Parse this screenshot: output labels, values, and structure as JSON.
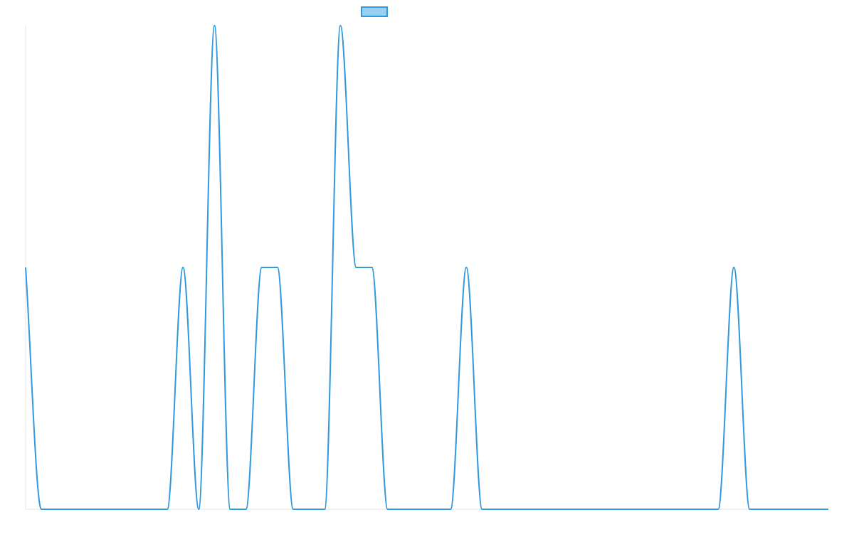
{
  "chart_data": {
    "type": "line",
    "title": "",
    "xlabel": "",
    "ylabel": "",
    "grid": false,
    "legend": {
      "position": "top",
      "label": ""
    },
    "colors": {
      "line": "#3399dd",
      "legend_fill": "#99cff2",
      "axis": "#e6e6e6"
    },
    "ylim": [
      0,
      2
    ],
    "x": [
      0,
      1,
      2,
      3,
      4,
      5,
      6,
      7,
      8,
      9,
      10,
      11,
      12,
      13,
      14,
      15,
      16,
      17,
      18,
      19,
      20,
      21,
      22,
      23,
      24,
      25,
      26,
      27,
      28,
      29,
      30,
      31,
      32,
      33,
      34,
      35,
      36,
      37,
      38,
      39,
      40,
      41,
      42,
      43,
      44,
      45,
      46,
      47,
      48,
      49,
      50,
      51
    ],
    "series": [
      {
        "name": "",
        "values": [
          1,
          0,
          0,
          0,
          0,
          0,
          0,
          0,
          0,
          0,
          1,
          0,
          2,
          0,
          0,
          1,
          1,
          0,
          0,
          0,
          2,
          1,
          1,
          0,
          0,
          0,
          0,
          0,
          1,
          0,
          0,
          0,
          0,
          0,
          0,
          0,
          0,
          0,
          0,
          0,
          0,
          0,
          0,
          0,
          0,
          1,
          0,
          0,
          0,
          0,
          0,
          0
        ]
      }
    ]
  }
}
